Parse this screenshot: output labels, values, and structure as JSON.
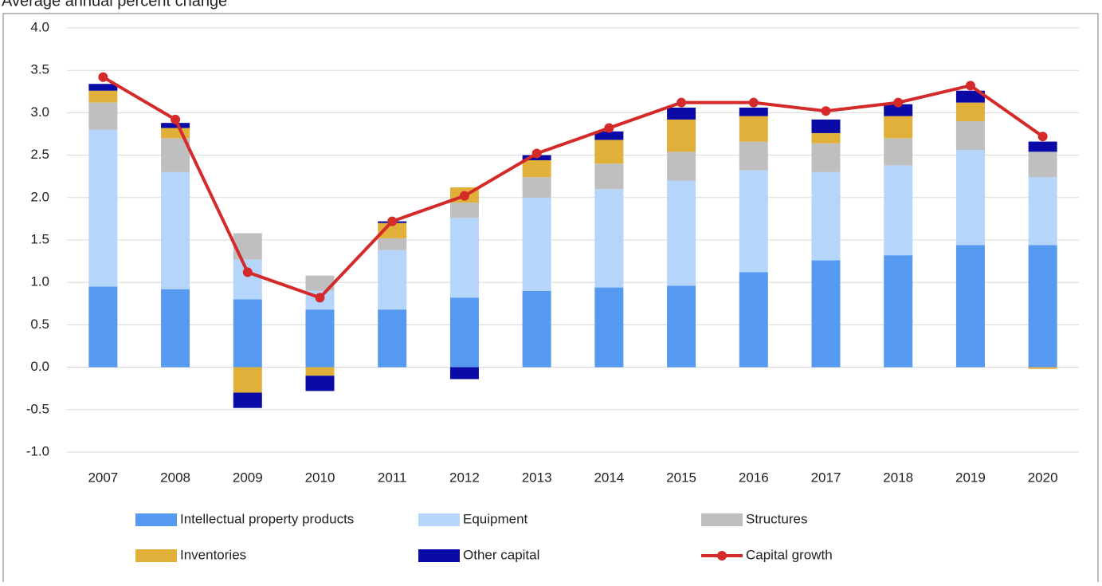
{
  "chart_data": {
    "type": "bar",
    "stacked": true,
    "subtitle": "Average annual percent change",
    "categories": [
      "2007",
      "2008",
      "2009",
      "2010",
      "2011",
      "2012",
      "2013",
      "2014",
      "2015",
      "2016",
      "2017",
      "2018",
      "2019",
      "2020"
    ],
    "series": [
      {
        "name": "Intellectual property products",
        "color": "#5599f0",
        "values": [
          0.95,
          0.92,
          0.8,
          0.68,
          0.68,
          0.82,
          0.9,
          0.94,
          0.96,
          1.12,
          1.26,
          1.32,
          1.44,
          1.44
        ]
      },
      {
        "name": "Equipment",
        "color": "#b6d5fb",
        "values": [
          1.85,
          1.38,
          0.47,
          0.22,
          0.7,
          0.94,
          1.1,
          1.16,
          1.24,
          1.2,
          1.04,
          1.06,
          1.12,
          0.8
        ]
      },
      {
        "name": "Structures",
        "color": "#bfbfbf",
        "values": [
          0.32,
          0.4,
          0.31,
          0.18,
          0.14,
          0.18,
          0.24,
          0.3,
          0.34,
          0.34,
          0.34,
          0.32,
          0.34,
          0.3
        ]
      },
      {
        "name": "Inventories",
        "color": "#e0b03a",
        "values": [
          0.14,
          0.12,
          -0.3,
          -0.1,
          0.18,
          0.18,
          0.2,
          0.28,
          0.38,
          0.3,
          0.12,
          0.26,
          0.22,
          -0.02
        ]
      },
      {
        "name": "Other capital",
        "color": "#0a0aa6",
        "values": [
          0.08,
          0.06,
          -0.18,
          -0.18,
          0.02,
          -0.14,
          0.06,
          0.1,
          0.14,
          0.1,
          0.16,
          0.14,
          0.14,
          0.12
        ]
      },
      {
        "name": "Capital growth",
        "type": "line",
        "color": "#d42a2a",
        "values": [
          3.42,
          2.92,
          1.12,
          0.82,
          1.72,
          2.02,
          2.52,
          2.82,
          3.12,
          3.12,
          3.02,
          3.12,
          3.32,
          2.72
        ]
      }
    ],
    "ylim": [
      -1,
      4
    ],
    "yticks": [
      {
        "value": -1,
        "label": "-1.0"
      },
      -0.5,
      {
        "value": 0,
        "label": "0.0"
      },
      0.5,
      {
        "value": 1,
        "label": "1.0"
      },
      1.5,
      {
        "value": 2,
        "label": "2.0"
      },
      2.5,
      {
        "value": 3,
        "label": "3.0"
      },
      3.5,
      {
        "value": 4,
        "label": "4.0"
      }
    ],
    "grid": true,
    "legend": "bottom"
  }
}
